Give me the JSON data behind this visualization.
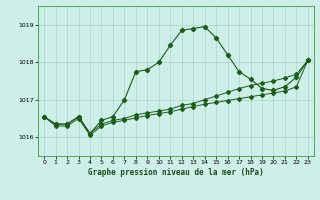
{
  "title": "Graphe pression niveau de la mer (hPa)",
  "background_color": "#ceeee8",
  "grid_color": "#aad4cc",
  "line_color": "#1a5c1a",
  "xlim": [
    -0.5,
    23.5
  ],
  "ylim": [
    1015.5,
    1019.5
  ],
  "yticks": [
    1016,
    1017,
    1018,
    1019
  ],
  "xticks": [
    0,
    1,
    2,
    3,
    4,
    5,
    6,
    7,
    8,
    9,
    10,
    11,
    12,
    13,
    14,
    15,
    16,
    17,
    18,
    19,
    20,
    21,
    22,
    23
  ],
  "x": [
    0,
    1,
    2,
    3,
    4,
    5,
    6,
    7,
    8,
    9,
    10,
    11,
    12,
    13,
    14,
    15,
    16,
    17,
    18,
    19,
    20,
    21,
    22,
    23
  ],
  "y_main": [
    1016.55,
    1016.35,
    1016.35,
    1016.55,
    1016.1,
    1016.45,
    1016.55,
    1017.0,
    1017.75,
    1017.8,
    1018.0,
    1018.45,
    1018.85,
    1018.9,
    1018.95,
    1018.65,
    1018.2,
    1017.75,
    1017.55,
    1017.3,
    1017.25,
    1017.35,
    1017.6,
    1018.05
  ],
  "y_line1": [
    1016.55,
    1016.35,
    1016.35,
    1016.55,
    1016.1,
    1016.35,
    1016.45,
    1016.5,
    1016.6,
    1016.65,
    1016.7,
    1016.75,
    1016.85,
    1016.9,
    1017.0,
    1017.1,
    1017.2,
    1017.3,
    1017.38,
    1017.44,
    1017.5,
    1017.58,
    1017.68,
    1018.05
  ],
  "y_line2": [
    1016.55,
    1016.3,
    1016.3,
    1016.5,
    1016.05,
    1016.3,
    1016.4,
    1016.45,
    1016.52,
    1016.58,
    1016.63,
    1016.68,
    1016.75,
    1016.82,
    1016.88,
    1016.93,
    1016.98,
    1017.03,
    1017.08,
    1017.13,
    1017.18,
    1017.23,
    1017.35,
    1018.05
  ]
}
